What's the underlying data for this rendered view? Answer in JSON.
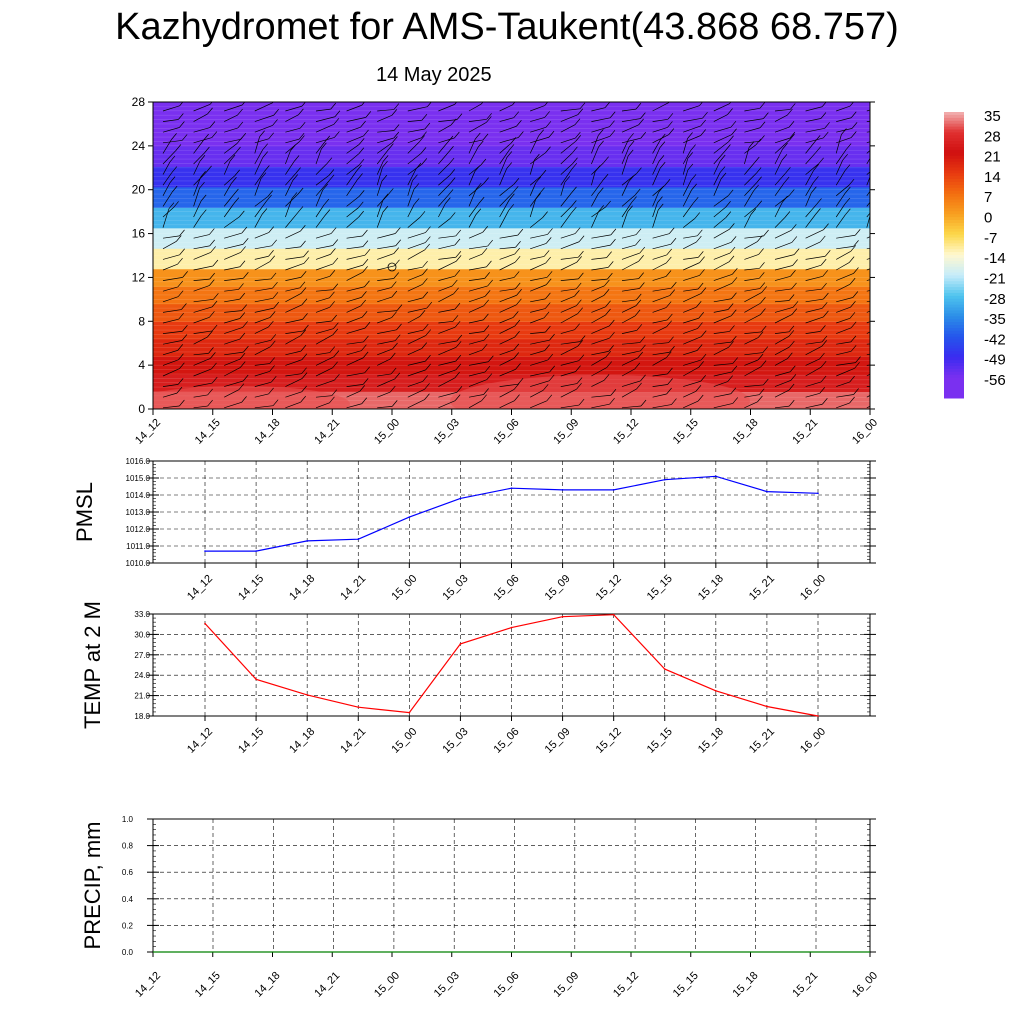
{
  "page": {
    "title": "Kazhydromet for AMS-Taukent(43.868 68.757)",
    "subtitle": "14 May 2025"
  },
  "chart_data": [
    {
      "type": "heatmap",
      "name": "temperature-wind-cross-section",
      "x_ticks": [
        "14_12",
        "14_15",
        "14_18",
        "14_21",
        "15_00",
        "15_03",
        "15_06",
        "15_09",
        "15_12",
        "15_15",
        "15_18",
        "15_21",
        "16_00"
      ],
      "y_ticks": [
        "0",
        "4",
        "8",
        "12",
        "16",
        "20",
        "24",
        "28"
      ],
      "ylim": [
        0,
        28
      ],
      "colorbar": {
        "labels": [
          "35",
          "28",
          "21",
          "14",
          "7",
          "0",
          "-7",
          "-14",
          "-21",
          "-28",
          "-35",
          "-42",
          "-49",
          "-56"
        ],
        "colors": [
          "#f2b3b3",
          "#e03030",
          "#d01010",
          "#e83a10",
          "#f36e10",
          "#f8a020",
          "#fcd84a",
          "#fff8d0",
          "#c6ecfa",
          "#4fc4ee",
          "#2b8ee8",
          "#2456ec",
          "#3a2cf0",
          "#7a30f0"
        ]
      },
      "layers": [
        {
          "y0": 0,
          "y1": 12.8,
          "values": [
            31,
            24,
            20,
            17,
            14,
            10,
            6,
            2
          ]
        },
        {
          "y0": 12.8,
          "y1": 24,
          "values": [
            -12,
            -20,
            -30,
            -40,
            -48,
            -54
          ]
        },
        {
          "y0": 24,
          "y1": 28,
          "values": [
            -58
          ]
        }
      ],
      "wind_barbs": "present"
    },
    {
      "type": "line",
      "name": "PMSL",
      "ylabel": "PMSL",
      "x": [
        "14_12",
        "14_15",
        "14_18",
        "14_21",
        "15_00",
        "15_03",
        "15_06",
        "15_09",
        "15_12",
        "15_15",
        "15_18",
        "15_21",
        "16_00"
      ],
      "series": [
        {
          "values": [
            1010.7,
            1010.7,
            1011.3,
            1011.4,
            1012.7,
            1013.8,
            1014.4,
            1014.3,
            1014.3,
            1014.9,
            1015.1,
            1014.2,
            1014.1
          ],
          "color": "#0000ff"
        }
      ],
      "ylim": [
        1010.0,
        1016.0
      ],
      "y_ticks": [
        "1010.0",
        "1011.0",
        "1012.0",
        "1013.0",
        "1014.0",
        "1015.0",
        "1016.0"
      ]
    },
    {
      "type": "line",
      "name": "TEMP at 2 M",
      "ylabel": "TEMP at 2 M",
      "x": [
        "14_12",
        "14_15",
        "14_18",
        "14_21",
        "15_00",
        "15_03",
        "15_06",
        "15_09",
        "15_12",
        "15_15",
        "15_18",
        "15_21",
        "16_00"
      ],
      "series": [
        {
          "values": [
            31.6,
            23.4,
            21.1,
            19.3,
            18.5,
            28.6,
            31.0,
            32.6,
            32.9,
            24.9,
            21.7,
            19.4,
            18.0
          ],
          "color": "#ff0000"
        }
      ],
      "ylim": [
        18.0,
        33.0
      ],
      "y_ticks": [
        "18.0",
        "21.0",
        "24.0",
        "27.0",
        "30.0",
        "33.0"
      ]
    },
    {
      "type": "line",
      "name": "PRECIP, mm",
      "ylabel": "PRECIP, mm",
      "x": [
        "14_12",
        "14_15",
        "14_18",
        "14_21",
        "15_00",
        "15_03",
        "15_06",
        "15_09",
        "15_12",
        "15_15",
        "15_18",
        "15_21",
        "16_00"
      ],
      "series": [
        {
          "values": [
            0,
            0,
            0,
            0,
            0,
            0,
            0,
            0,
            0,
            0,
            0,
            0,
            0
          ],
          "color": "#008000"
        }
      ],
      "ylim": [
        0.0,
        1.0
      ],
      "y_ticks": [
        "0.0",
        "0.2",
        "0.4",
        "0.6",
        "0.8",
        "1.0"
      ]
    }
  ]
}
